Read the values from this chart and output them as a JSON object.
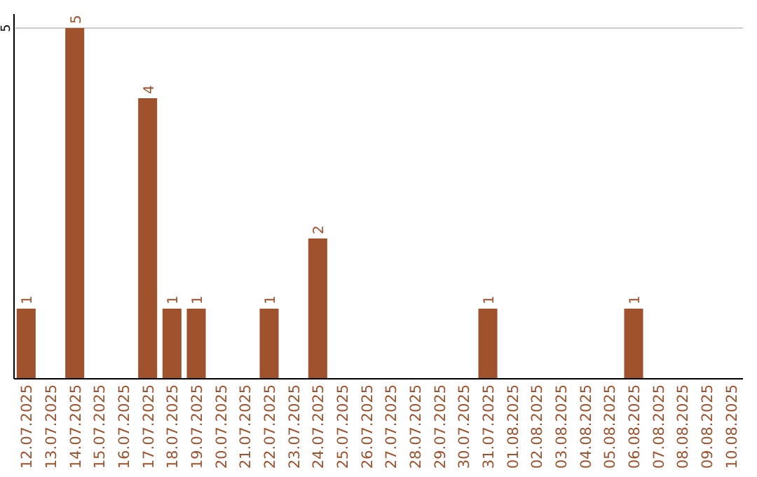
{
  "chart_data": {
    "type": "bar",
    "categories": [
      "12.07.2025",
      "13.07.2025",
      "14.07.2025",
      "15.07.2025",
      "16.07.2025",
      "17.07.2025",
      "18.07.2025",
      "19.07.2025",
      "20.07.2025",
      "21.07.2025",
      "22.07.2025",
      "23.07.2025",
      "24.07.2025",
      "25.07.2025",
      "26.07.2025",
      "27.07.2025",
      "28.07.2025",
      "29.07.2025",
      "30.07.2025",
      "31.07.2025",
      "01.08.2025",
      "02.08.2025",
      "03.08.2025",
      "04.08.2025",
      "05.08.2025",
      "06.08.2025",
      "07.08.2025",
      "08.08.2025",
      "09.08.2025",
      "10.08.2025"
    ],
    "values": [
      1,
      0,
      5,
      0,
      0,
      4,
      1,
      1,
      0,
      0,
      1,
      0,
      2,
      0,
      0,
      0,
      0,
      0,
      0,
      1,
      0,
      0,
      0,
      0,
      0,
      1,
      0,
      0,
      0,
      0
    ],
    "value_labels": [
      "1",
      null,
      "5",
      null,
      null,
      "4",
      "1",
      "1",
      null,
      null,
      "1",
      null,
      "2",
      null,
      null,
      null,
      null,
      null,
      null,
      "1",
      null,
      null,
      null,
      null,
      null,
      "1",
      null,
      null,
      null,
      null
    ],
    "color": "#a0522d",
    "ylim": [
      0,
      5.2
    ],
    "yticks": [
      5
    ],
    "grid": "y"
  }
}
